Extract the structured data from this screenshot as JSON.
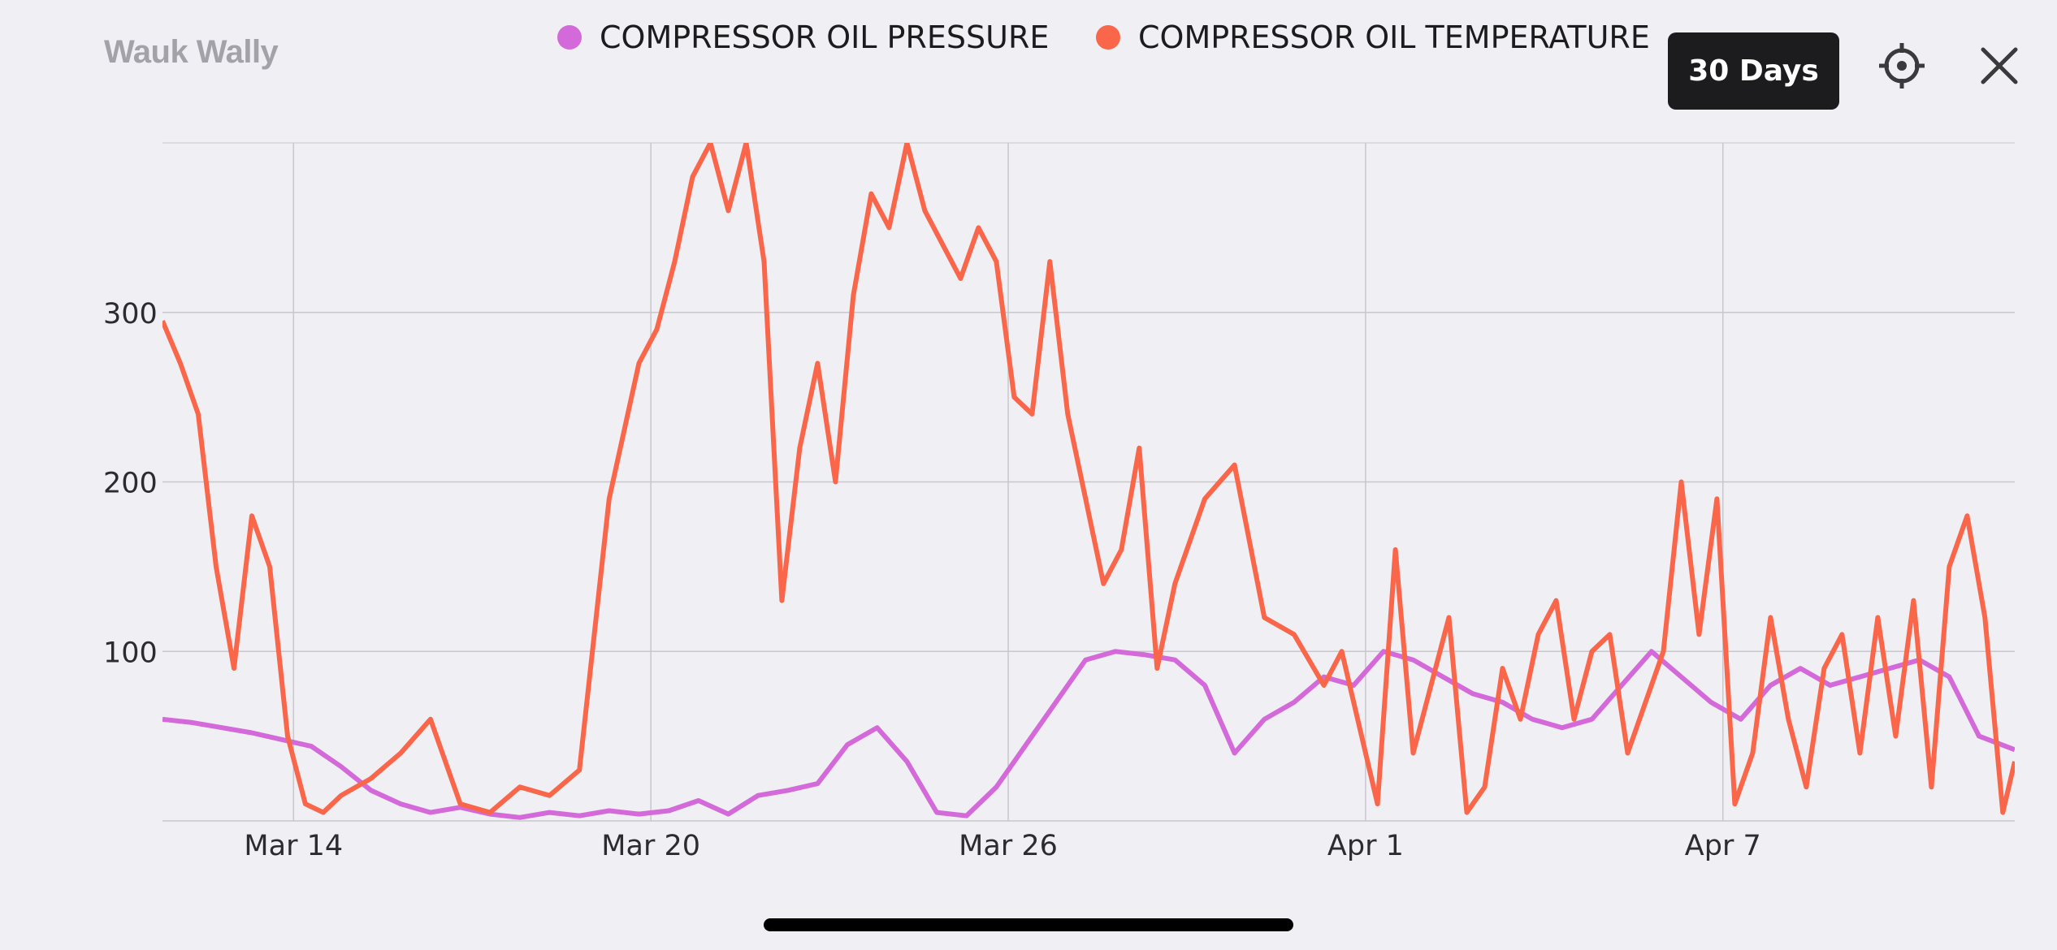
{
  "header": {
    "title": "Wauk Wally",
    "range_button": "30 Days",
    "locate_icon": "crosshair-icon",
    "close_icon": "close-icon"
  },
  "legend": [
    {
      "label": "COMPRESSOR OIL PRESSURE",
      "color": "#d46ad9"
    },
    {
      "label": "COMPRESSOR OIL TEMPERATURE",
      "color": "#f9664a"
    }
  ],
  "chart_data": {
    "type": "line",
    "title": "",
    "xlabel": "",
    "ylabel": "",
    "x_start": "Mar 11",
    "x_end": "Apr 12",
    "xlim_days": [
      0,
      31.1
    ],
    "ylim": [
      0,
      400
    ],
    "y_ticks": [
      100,
      200,
      300
    ],
    "x_ticks": [
      {
        "label": "Mar 14",
        "day": 2.2
      },
      {
        "label": "Mar 20",
        "day": 8.2
      },
      {
        "label": "Mar 26",
        "day": 14.2
      },
      {
        "label": "Apr 1",
        "day": 20.2
      },
      {
        "label": "Apr 7",
        "day": 26.2
      }
    ],
    "grid": true,
    "legend_position": "top",
    "series": [
      {
        "name": "COMPRESSOR OIL PRESSURE",
        "color": "#d46ad9",
        "x": [
          0,
          0.5,
          1,
          1.5,
          2,
          2.5,
          3,
          3.5,
          4,
          4.5,
          5,
          5.5,
          6,
          6.5,
          7,
          7.5,
          8,
          8.5,
          9,
          9.5,
          10,
          10.5,
          11,
          11.5,
          12,
          12.5,
          13,
          13.5,
          14,
          14.5,
          15,
          15.5,
          16,
          16.5,
          17,
          17.5,
          18,
          18.5,
          19,
          19.5,
          20,
          20.5,
          21,
          21.5,
          22,
          22.5,
          23,
          23.5,
          24,
          24.5,
          25,
          25.5,
          26,
          26.5,
          27,
          27.5,
          28,
          28.5,
          29,
          29.5,
          30,
          30.5,
          31.1
        ],
        "y": [
          60,
          58,
          55,
          52,
          48,
          44,
          32,
          18,
          10,
          5,
          8,
          4,
          2,
          5,
          3,
          6,
          4,
          6,
          12,
          4,
          15,
          18,
          22,
          45,
          55,
          35,
          5,
          3,
          20,
          45,
          70,
          95,
          100,
          98,
          95,
          80,
          40,
          60,
          70,
          85,
          80,
          100,
          95,
          85,
          75,
          70,
          60,
          55,
          60,
          80,
          100,
          85,
          70,
          60,
          80,
          90,
          80,
          85,
          90,
          95,
          85,
          50,
          42
        ]
      },
      {
        "name": "COMPRESSOR OIL TEMPERATURE",
        "color": "#f9664a",
        "x": [
          0,
          0.3,
          0.6,
          0.9,
          1.2,
          1.5,
          1.8,
          2.1,
          2.4,
          2.7,
          3,
          3.5,
          4,
          4.5,
          5,
          5.5,
          6,
          6.5,
          7,
          7.5,
          8,
          8.3,
          8.6,
          8.9,
          9.2,
          9.5,
          9.8,
          10.1,
          10.4,
          10.7,
          11,
          11.3,
          11.6,
          11.9,
          12.2,
          12.5,
          12.8,
          13.1,
          13.4,
          13.7,
          14,
          14.3,
          14.6,
          14.9,
          15.2,
          15.5,
          15.8,
          16.1,
          16.4,
          16.7,
          17,
          17.5,
          18,
          18.5,
          19,
          19.5,
          19.8,
          20.1,
          20.4,
          20.7,
          21,
          21.3,
          21.6,
          21.9,
          22.2,
          22.5,
          22.8,
          23.1,
          23.4,
          23.7,
          24,
          24.3,
          24.6,
          24.9,
          25.2,
          25.5,
          25.8,
          26.1,
          26.4,
          26.7,
          27,
          27.3,
          27.6,
          27.9,
          28.2,
          28.5,
          28.8,
          29.1,
          29.4,
          29.7,
          30,
          30.3,
          30.6,
          30.9,
          31.1
        ],
        "y": [
          295,
          270,
          240,
          150,
          90,
          180,
          150,
          50,
          10,
          5,
          15,
          25,
          40,
          60,
          10,
          5,
          20,
          15,
          30,
          190,
          270,
          290,
          330,
          380,
          400,
          360,
          400,
          330,
          130,
          220,
          270,
          200,
          310,
          370,
          350,
          400,
          360,
          340,
          320,
          350,
          330,
          250,
          240,
          330,
          240,
          190,
          140,
          160,
          220,
          90,
          140,
          190,
          210,
          120,
          110,
          80,
          100,
          55,
          10,
          160,
          40,
          80,
          120,
          5,
          20,
          90,
          60,
          110,
          130,
          60,
          100,
          110,
          40,
          70,
          100,
          200,
          110,
          190,
          10,
          40,
          120,
          60,
          20,
          90,
          110,
          40,
          120,
          50,
          130,
          20,
          150,
          180,
          120,
          5,
          35
        ]
      }
    ]
  }
}
